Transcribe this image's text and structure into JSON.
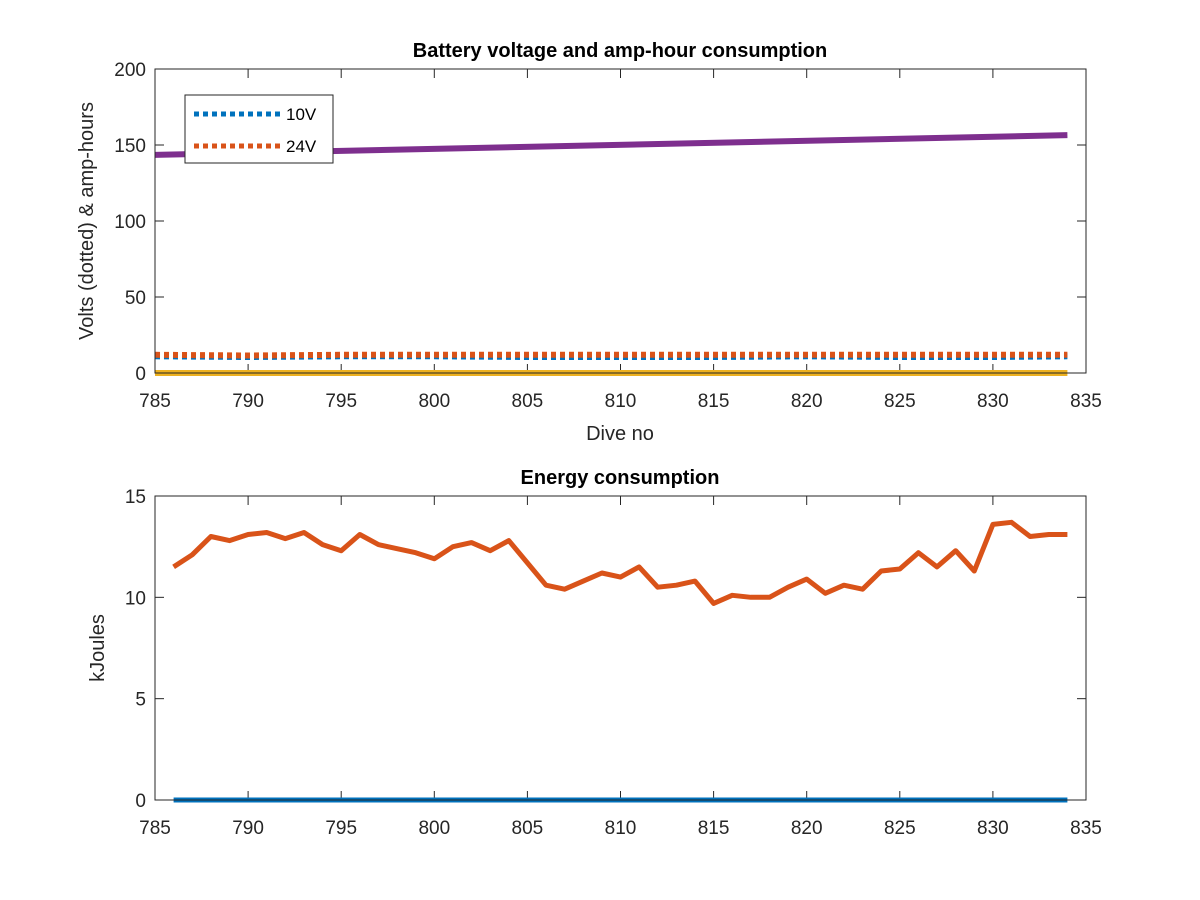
{
  "chart_data": [
    {
      "type": "line",
      "title": "Battery voltage and amp-hour consumption",
      "xlabel": "Dive no",
      "ylabel": "Volts (dotted) & amp-hours",
      "xlim": [
        785,
        835
      ],
      "ylim": [
        0,
        200
      ],
      "xticks": [
        785,
        790,
        795,
        800,
        805,
        810,
        815,
        820,
        825,
        830,
        835
      ],
      "yticks": [
        0,
        50,
        100,
        150,
        200
      ],
      "grid": false,
      "legend": {
        "placement": "top-left",
        "entries": [
          "10V",
          "24V"
        ]
      },
      "series": [
        {
          "name": "10V",
          "style": "dotted",
          "color": "#0072BD",
          "x": [
            785,
            790,
            795,
            800,
            805,
            810,
            815,
            820,
            825,
            830,
            834
          ],
          "y": [
            11,
            10.5,
            11,
            11,
            10.5,
            10.5,
            10.5,
            11,
            10.5,
            10.5,
            11
          ]
        },
        {
          "name": "24V",
          "style": "dotted",
          "color": "#D95319",
          "x": [
            785,
            790,
            795,
            800,
            805,
            810,
            815,
            820,
            825,
            830,
            834
          ],
          "y": [
            12,
            11.5,
            12,
            12,
            12,
            12,
            12,
            12,
            12,
            12,
            12
          ]
        },
        {
          "style": "solid",
          "color": "#7E2F8E",
          "x": [
            785,
            834
          ],
          "y": [
            143.5,
            156.5
          ]
        },
        {
          "style": "solid",
          "color": "#EDB120",
          "x": [
            785,
            834
          ],
          "y": [
            0,
            0
          ]
        }
      ]
    },
    {
      "type": "line",
      "title": "Energy consumption",
      "xlabel": "",
      "ylabel": "kJoules",
      "xlim": [
        785,
        835
      ],
      "ylim": [
        0,
        15
      ],
      "xticks": [
        785,
        790,
        795,
        800,
        805,
        810,
        815,
        820,
        825,
        830,
        835
      ],
      "yticks": [
        0,
        5,
        10,
        15
      ],
      "grid": false,
      "series": [
        {
          "style": "solid",
          "color": "#0072BD",
          "x": [
            786,
            834
          ],
          "y": [
            0,
            0
          ]
        },
        {
          "style": "solid",
          "color": "#D95319",
          "x": [
            786,
            787,
            788,
            789,
            790,
            791,
            792,
            793,
            794,
            795,
            796,
            797,
            798,
            799,
            800,
            801,
            802,
            803,
            804,
            805,
            806,
            807,
            808,
            809,
            810,
            811,
            812,
            813,
            814,
            815,
            816,
            817,
            818,
            819,
            820,
            821,
            822,
            823,
            824,
            825,
            826,
            827,
            828,
            829,
            830,
            831,
            832,
            833,
            834
          ],
          "y": [
            11.5,
            12.1,
            13.0,
            12.8,
            13.1,
            13.2,
            12.9,
            13.2,
            12.6,
            12.3,
            13.1,
            12.6,
            12.4,
            12.2,
            11.9,
            12.5,
            12.7,
            12.3,
            12.8,
            11.7,
            10.6,
            10.4,
            10.8,
            11.2,
            11.0,
            11.5,
            10.5,
            10.6,
            10.8,
            9.7,
            10.1,
            10.0,
            10.0,
            10.5,
            10.9,
            10.2,
            10.6,
            10.4,
            11.3,
            11.4,
            12.2,
            11.5,
            12.3,
            11.3,
            13.6,
            13.7,
            13.0,
            13.1,
            13.1
          ]
        }
      ]
    }
  ]
}
